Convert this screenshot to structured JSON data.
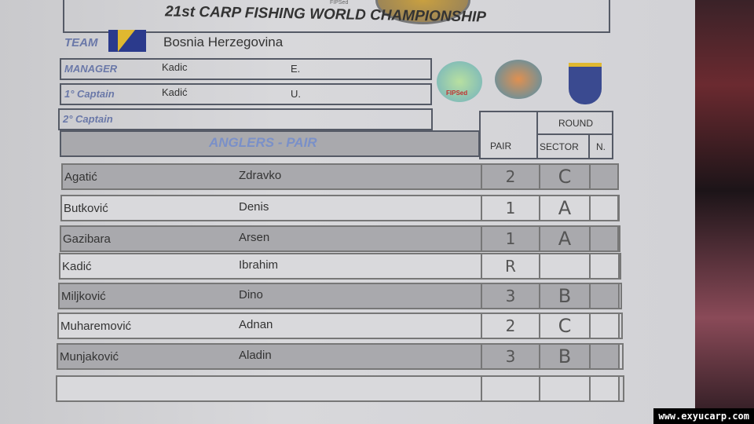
{
  "header": {
    "title": "21st CARP FISHING WORLD CHAMPIONSHIP",
    "seal_text": "FIPSed"
  },
  "team": {
    "label": "TEAM",
    "name": "Bosnia Herzegovina"
  },
  "staff": [
    {
      "role": "MANAGER",
      "surname": "Kadic",
      "initial": "E."
    },
    {
      "role": "1° Captain",
      "surname": "Kadić",
      "initial": "U."
    },
    {
      "role": "2° Captain",
      "surname": "",
      "initial": ""
    }
  ],
  "logos": [
    "FIPSed",
    "fish-globe-logo",
    "bih-federation-shield"
  ],
  "table": {
    "section_title": "ANGLERS - PAIR",
    "round_label": "ROUND",
    "columns": [
      "PAIR",
      "SECTOR",
      "N."
    ],
    "rows": [
      {
        "surname": "Agatić",
        "name": "Zdravko",
        "pair": "2",
        "sector": "C",
        "n": ""
      },
      {
        "surname": "Butković",
        "name": "Denis",
        "pair": "1",
        "sector": "A",
        "n": ""
      },
      {
        "surname": "Gazibara",
        "name": "Arsen",
        "pair": "1",
        "sector": "A",
        "n": ""
      },
      {
        "surname": "Kadić",
        "name": "Ibrahim",
        "pair": "R",
        "sector": "",
        "n": ""
      },
      {
        "surname": "Miljković",
        "name": "Dino",
        "pair": "3",
        "sector": "B",
        "n": ""
      },
      {
        "surname": "Muharemović",
        "name": "Adnan",
        "pair": "2",
        "sector": "C",
        "n": ""
      },
      {
        "surname": "Munjaković",
        "name": "Aladin",
        "pair": "3",
        "sector": "B",
        "n": ""
      },
      {
        "surname": "",
        "name": "",
        "pair": "",
        "sector": "",
        "n": ""
      }
    ]
  },
  "watermark": "www.exyucarp.com"
}
